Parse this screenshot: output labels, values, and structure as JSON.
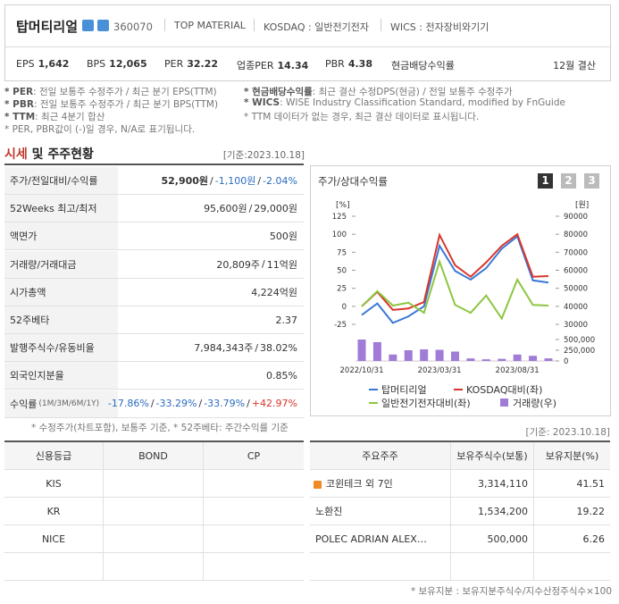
{
  "header": {
    "name": "탑머티리얼",
    "code": "360070",
    "tags": [
      "TOP MATERIAL",
      "KOSDAQ : 일반전기전자",
      "WICS : 전자장비와기기"
    ],
    "metrics": [
      {
        "label": "EPS",
        "value": "1,642"
      },
      {
        "label": "BPS",
        "value": "12,065"
      },
      {
        "label": "PER",
        "value": "32.22"
      },
      {
        "label": "업종PER",
        "value": "14.34"
      },
      {
        "label": "PBR",
        "value": "4.38"
      },
      {
        "label": "현금배당수익률"
      }
    ],
    "fiscal": "12월 결산"
  },
  "notes": {
    "left": [
      {
        "term": "* PER",
        "text": ": 전일 보통주 수정주가 / 최근 분기 EPS(TTM)"
      },
      {
        "term": "* PBR",
        "text": ": 전일 보통주 수정주가 / 최근 분기 BPS(TTM)"
      },
      {
        "term": "* TTM",
        "text": ": 최근 4분기 합산"
      },
      {
        "text": "* PER, PBR값이 (-)일 경우, N/A로 표기됩니다."
      }
    ],
    "right": [
      {
        "term": "* 현금배당수익률",
        "text": ": 최근 결산 수정DPS(현금) / 전일 보통주 수정주가"
      },
      {
        "term": "* WICS",
        "text": ": WISE Industry Classification Standard, modified by FnGuide"
      },
      {
        "text": "* TTM 데이터가 없는 경우, 최근 결산 데이터로 표시됩니다."
      }
    ]
  },
  "section": {
    "title": [
      "시세",
      " 및 주주현황"
    ],
    "date": "[기준:2023.10.18]"
  },
  "quote": {
    "rows": [
      {
        "label": "주가/전일대비/수익률",
        "parts": [
          "52,900원",
          "/",
          "-1,100원",
          "/",
          "-2.04%"
        ]
      },
      {
        "label": "52Weeks 최고/최저",
        "parts": [
          "95,600원",
          "/",
          "29,000원"
        ]
      },
      {
        "label": "액면가",
        "parts": [
          "500원"
        ]
      },
      {
        "label": "거래량/거래대금",
        "parts": [
          "20,809주",
          "/",
          "11억원"
        ]
      },
      {
        "label": "시가총액",
        "parts": [
          "4,224억원"
        ]
      },
      {
        "label": "52주베타",
        "parts": [
          "2.37"
        ]
      },
      {
        "label": "발행주식수/유동비율",
        "parts": [
          "7,984,343주",
          "/",
          "38.02%"
        ]
      },
      {
        "label": "외국인지분율",
        "parts": [
          "0.85%"
        ]
      },
      {
        "label": "수익률",
        "sub": "(1M/3M/6M/1Y)",
        "parts": [
          "-17.86%",
          "/",
          "-33.29%",
          "/",
          "-33.79%",
          "/",
          "+42.97%"
        ]
      }
    ],
    "note": "* 수정주가(차트포함), 보통주 기준, * 52주베타: 주간수익률 기준"
  },
  "chart_panel": {
    "title": "주가/상대수익률",
    "tabs": [
      "1",
      "2",
      "3"
    ]
  },
  "chart_data": {
    "type": "line",
    "categories": [
      "2022/10/31",
      null,
      null,
      null,
      null,
      "2023/03/31",
      null,
      null,
      null,
      null,
      "2023/08/31",
      null,
      null
    ],
    "y_label": "[%]",
    "y2_label": "[원]",
    "ylim": [
      -25,
      125
    ],
    "yticks": [
      125,
      100,
      75,
      50,
      25,
      0,
      -25
    ],
    "y2lim": [
      30000,
      90000
    ],
    "y2ticks": [
      90000,
      80000,
      70000,
      60000,
      50000,
      40000,
      30000
    ],
    "vlim": [
      0,
      500000
    ],
    "vticks": [
      {
        "value": 500000,
        "label": "500,000"
      },
      {
        "value": 250000,
        "label": "250,000"
      },
      0
    ],
    "series": [
      {
        "name": "탑머티리얼",
        "color": "#3a78d8",
        "values": [
          -12,
          4,
          -23,
          -14,
          0,
          84,
          49,
          37,
          53,
          80,
          97,
          36,
          33
        ]
      },
      {
        "name": "KOSDAQ대비(좌)",
        "color": "#d8362a",
        "values": [
          0,
          20,
          -5,
          -3,
          6,
          99,
          57,
          41,
          61,
          84,
          100,
          41,
          42
        ]
      },
      {
        "name": "일반전기전자대비(좌)",
        "color": "#8cc63f",
        "values": [
          0,
          21,
          1,
          5,
          -9,
          62,
          2,
          -9,
          15,
          -17,
          37,
          2,
          1
        ]
      },
      {
        "name": "거래량(우)",
        "color": "#a07cd6",
        "axis": "volume",
        "type": "bar",
        "values": [
          500000,
          440000,
          150000,
          250000,
          270000,
          260000,
          220000,
          60000,
          40000,
          50000,
          150000,
          120000,
          60000
        ]
      }
    ]
  },
  "right_date": "[기준: 2023.10.18]",
  "credit": {
    "header": [
      "신용등급",
      "BOND",
      "CP"
    ],
    "rows": [
      "KIS",
      "KR",
      "NICE"
    ]
  },
  "holders": {
    "header": [
      "주요주주",
      "보유주식수(보통)",
      "보유지분(%)"
    ],
    "rows": [
      [
        "코윈테크 외 7인",
        "3,314,110",
        "41.51"
      ],
      [
        "노환진",
        "1,534,200",
        "19.22"
      ],
      [
        "POLEC ADRIAN ALEX…",
        "500,000",
        "6.26"
      ]
    ],
    "note": "* 보유지분 : 보유지분주식수/지수산정주식수×100"
  }
}
